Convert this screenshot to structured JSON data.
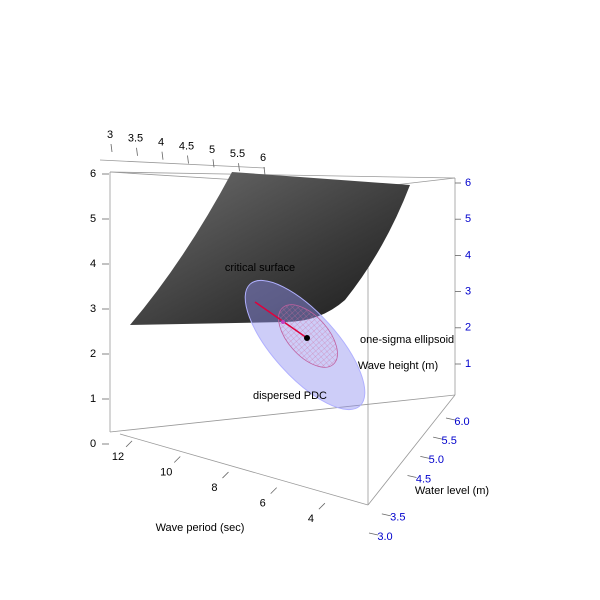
{
  "chart_data": {
    "type": "surface3d",
    "x_label": "Wave period (sec)",
    "y_label": "Water level (m)",
    "z_label": "Wave height (m)",
    "annotations": [
      "critical surface",
      "one-sigma ellipsoid",
      "dispersed PDC"
    ],
    "xlim": [
      3,
      12.5
    ],
    "xticks": [
      4,
      6,
      8,
      10,
      12
    ],
    "ylim": [
      3,
      6
    ],
    "yticks": [
      3,
      3.5,
      4,
      4.5,
      5,
      5.5,
      6
    ],
    "y2ticks": [
      {
        "value": 3,
        "label": "3.0"
      },
      {
        "value": 3.5,
        "label": "3.5"
      },
      {
        "value": 4.5,
        "label": "4.5"
      },
      {
        "value": 5,
        "label": "5.0"
      },
      {
        "value": 5.5,
        "label": "5.5"
      },
      {
        "value": 6,
        "label": "6.0"
      }
    ],
    "zlim": [
      0,
      6
    ],
    "zticks": [
      0,
      1,
      2,
      3,
      4,
      5,
      6
    ],
    "z2ticks": [
      1,
      2,
      3,
      4,
      5,
      6
    ],
    "axis_color": "#000000",
    "secondary_axis_color": "#0000cc"
  }
}
